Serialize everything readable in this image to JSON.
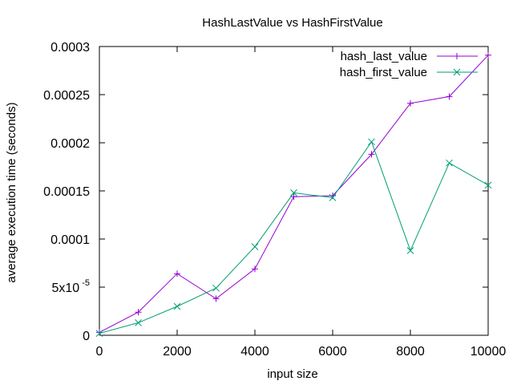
{
  "chart_data": {
    "type": "line",
    "title": "HashLastValue vs HashFirstValue",
    "xlabel": "input size",
    "ylabel": "average execution time (seconds)",
    "xlim": [
      0,
      10000
    ],
    "ylim": [
      0,
      0.0003
    ],
    "grid": false,
    "legend_position": "top-right",
    "x_ticks": [
      0,
      2000,
      4000,
      6000,
      8000,
      10000
    ],
    "x_tick_labels": [
      "0",
      "2000",
      "4000",
      "6000",
      "8000",
      "10000"
    ],
    "y_ticks": [
      0,
      5e-05,
      0.0001,
      0.00015,
      0.0002,
      0.00025,
      0.0003
    ],
    "y_tick_labels": [
      {
        "base": "0",
        "exp": ""
      },
      {
        "base": "5x10",
        "exp": "-5"
      },
      {
        "base": "0.0001",
        "exp": ""
      },
      {
        "base": "0.00015",
        "exp": ""
      },
      {
        "base": "0.0002",
        "exp": ""
      },
      {
        "base": "0.00025",
        "exp": ""
      },
      {
        "base": "0.0003",
        "exp": ""
      }
    ],
    "series": [
      {
        "name": "hash_last_value",
        "color": "#9400d3",
        "marker": "plus",
        "x": [
          0,
          1000,
          2000,
          3000,
          4000,
          5000,
          6000,
          7000,
          8000,
          9000,
          10000
        ],
        "y": [
          3e-06,
          2.4e-05,
          6.4e-05,
          3.8e-05,
          6.9e-05,
          0.000144,
          0.000145,
          0.000188,
          0.000241,
          0.000248,
          0.000291
        ]
      },
      {
        "name": "hash_first_value",
        "color": "#009e73",
        "marker": "cross",
        "x": [
          0,
          1000,
          2000,
          3000,
          4000,
          5000,
          6000,
          7000,
          8000,
          9000,
          10000
        ],
        "y": [
          2e-06,
          1.3e-05,
          3e-05,
          4.9e-05,
          9.2e-05,
          0.000148,
          0.000143,
          0.000201,
          8.8e-05,
          0.000179,
          0.000156
        ]
      }
    ]
  }
}
